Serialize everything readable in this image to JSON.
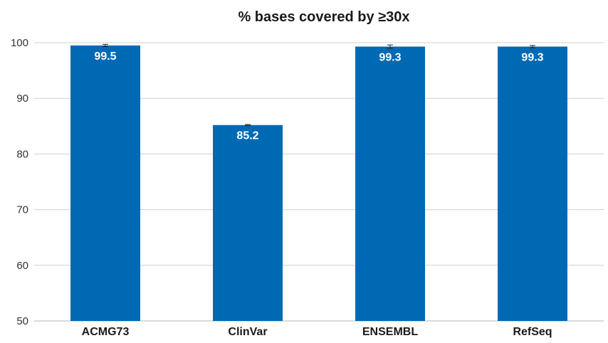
{
  "chart_data": {
    "type": "bar",
    "title": "% bases covered by ≥30x",
    "xlabel": "",
    "ylabel": "",
    "categories": [
      "ACMG73",
      "ClinVar",
      "ENSEMBL",
      "RefSeq"
    ],
    "values": [
      99.5,
      85.2,
      99.3,
      99.3
    ],
    "data_labels": [
      "99.5",
      "85.2",
      "99.3",
      "99.3"
    ],
    "error": [
      0.2,
      0.1,
      0.3,
      0.2
    ],
    "ylim": [
      50,
      100
    ],
    "yticks": [
      50,
      60,
      70,
      80,
      90,
      100
    ],
    "grid": true,
    "legend": "none",
    "bar_color": "#0069b4"
  }
}
